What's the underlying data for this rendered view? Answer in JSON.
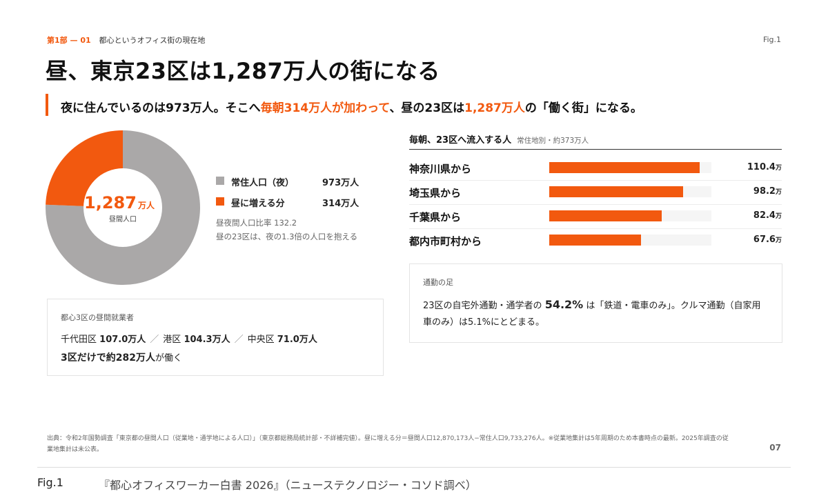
{
  "header": {
    "section_number": "第1部 — 01",
    "section_title": "都心というオフィス街の現在地",
    "fig_tag": "Fig.1"
  },
  "headline": "昼、東京23区は1,287万人の街になる",
  "lead": {
    "part1": "夜に住んでいるのは973万人。そこへ",
    "highlight1": "毎朝314万人が加わって",
    "part2": "、昼の23区は",
    "highlight2": "1,287万人",
    "part3": "の「働く街」になる。"
  },
  "donut": {
    "center_value": "1,287",
    "center_unit": "万人",
    "center_label": "昼間人口",
    "note_line1": "昼夜間人口比率 132.2",
    "note_line2": "昼の23区は、夜の1.3倍の人口を抱える"
  },
  "legend": [
    {
      "label": "常住人口（夜）",
      "value": "973万人",
      "color": "#aaa8a8"
    },
    {
      "label": "昼に増える分",
      "value": "314万人",
      "color": "#f2590f"
    }
  ],
  "workers_card": {
    "title": "都心3区の昼間就業者",
    "wards": [
      {
        "name": "千代田区",
        "value": "107.0万人"
      },
      {
        "name": "港区",
        "value": "104.3万人"
      },
      {
        "name": "中央区",
        "value": "71.0万人"
      }
    ],
    "separator": "／",
    "total_bold": "3区だけで約282万人",
    "total_rest": "が働く"
  },
  "inflow": {
    "title": "毎朝、23区へ流入する人",
    "subtitle": "常住地別・約373万人"
  },
  "commute_card": {
    "title": "通勤の足",
    "text_pre": "23区の自宅外通勤・通学者の",
    "text_value": "54.2%",
    "text_post": "は「鉄道・電車のみ」。クルマ通勤（自家用車のみ）は5.1%にとどまる。"
  },
  "chart_data": [
    {
      "type": "pie",
      "variant": "donut",
      "title": "",
      "slices": [
        {
          "label": "常住人口（夜）",
          "value": 973,
          "color": "#aaa8a8"
        },
        {
          "label": "昼に増える分",
          "value": 314,
          "color": "#f2590f"
        }
      ],
      "total": 1287,
      "unit": "万人"
    },
    {
      "type": "bar",
      "orientation": "horizontal",
      "title": "毎朝、23区へ流入する人",
      "categories": [
        "神奈川県から",
        "埼玉県から",
        "千葉県から",
        "都内市町村から"
      ],
      "values": [
        110.4,
        98.2,
        82.4,
        67.6
      ],
      "value_labels": [
        "110.4",
        "98.2",
        "82.4",
        "67.6"
      ],
      "unit": "万",
      "xlim": [
        0,
        119
      ],
      "color": "#f2590f"
    }
  ],
  "source": "出典：令和2年国勢調査「東京都の昼間人口（従業地・通学地による人口）」（東京都総務局統計部・不詳補完値）。昼に増える分＝昼間人口12,870,173人−常住人口9,733,276人。※従業地集計は5年周期のため本書時点の最新。2025年調査の従業地集計は未公表。",
  "page_number": "07",
  "footer": {
    "fig_label": "Fig.1",
    "book_title": "『都心オフィスワーカー白書 2026』（ニューステクノロジー・コソド調べ）"
  }
}
